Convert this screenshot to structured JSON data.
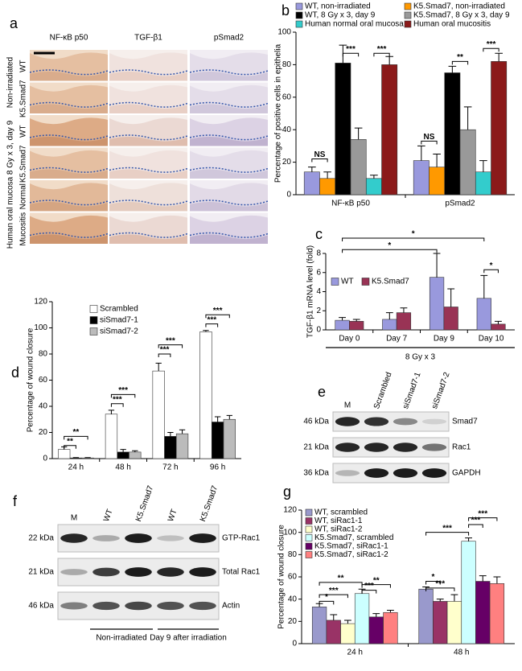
{
  "figure": {
    "panel_a": {
      "panel": "a",
      "columns": [
        "NF-κB p50",
        "TGF-β1",
        "pSmad2"
      ],
      "rows": [
        "WT",
        "K5.Smad7",
        "WT",
        "K5.Smad7",
        "Normal",
        "Mucositis"
      ],
      "groups": [
        "Non-irradiated",
        "8 Gy x 3, day 9",
        "Human oral mucosa"
      ]
    },
    "panel_e": {
      "panel": "e",
      "lanes": [
        "M",
        "Scrambled",
        "siSmad7-1",
        "siSmad7-2"
      ],
      "rows": [
        {
          "size": "46 kDa",
          "label": "Smad7"
        },
        {
          "size": "21 kDa",
          "label": "Rac1"
        },
        {
          "size": "36 kDa",
          "label": "GAPDH"
        }
      ]
    },
    "panel_f": {
      "panel": "f",
      "lanes": [
        "M",
        "WT",
        "K5.Smad7",
        "WT",
        "K5.Smad7"
      ],
      "rows": [
        {
          "size": "22 kDa",
          "label": "GTP-Rac1"
        },
        {
          "size": "21 kDa",
          "label": "Total Rac1"
        },
        {
          "size": "46 kDa",
          "label": "Actin"
        }
      ],
      "groups": [
        "Non-irradiated",
        "Day 9 after irradiation"
      ]
    }
  },
  "chart_data": [
    {
      "type": "bar",
      "panel": "b",
      "ylabel": "Percentage of positive cells in epithelia",
      "categories": [
        "NF-κB p50",
        "pSmad2"
      ],
      "series": [
        {
          "name": "WT, non-irradiated",
          "color": "#9999dd",
          "values": [
            14,
            21
          ],
          "errors": [
            3,
            9
          ]
        },
        {
          "name": "K5.Smad7, non-irradiated",
          "color": "#ff9900",
          "values": [
            10,
            17
          ],
          "errors": [
            4,
            8
          ]
        },
        {
          "name": "WT, 8 Gy x 3, day 9",
          "color": "#000000",
          "values": [
            81,
            75
          ],
          "errors": [
            11,
            4
          ]
        },
        {
          "name": "K5.Smad7, 8 Gy x 3, day 9",
          "color": "#999999",
          "values": [
            34,
            40
          ],
          "errors": [
            7,
            14
          ]
        },
        {
          "name": "Human normal oral mucosa",
          "color": "#33cccc",
          "values": [
            10,
            14
          ],
          "errors": [
            2,
            7
          ]
        },
        {
          "name": "Human oral mucositis",
          "color": "#8b1a1a",
          "values": [
            80,
            82
          ],
          "errors": [
            5,
            5
          ]
        }
      ],
      "ylim": [
        0,
        100
      ],
      "yticks": [
        0,
        20,
        40,
        60,
        80,
        100
      ],
      "annotations": [
        "NS",
        "***",
        "***",
        "NS",
        "**",
        "***"
      ]
    },
    {
      "type": "bar",
      "panel": "c",
      "ylabel": "TGF-β1 mRNA level (fold)",
      "xlabel": "8 Gy x 3",
      "categories": [
        "Day 0",
        "Day 7",
        "Day 9",
        "Day 10"
      ],
      "series": [
        {
          "name": "WT",
          "color": "#9999dd",
          "values": [
            1,
            1.1,
            5.5,
            3.3
          ],
          "errors": [
            0.3,
            0.7,
            2.5,
            2.4
          ]
        },
        {
          "name": "K5.Smad7",
          "color": "#993355",
          "values": [
            0.9,
            1.8,
            2.4,
            0.6
          ],
          "errors": [
            0.2,
            0.5,
            1.9,
            0.3
          ]
        }
      ],
      "ylim": [
        0,
        8
      ],
      "yticks": [
        0,
        2,
        4,
        6,
        8
      ],
      "annotations": [
        "*",
        "*",
        "*"
      ]
    },
    {
      "type": "bar",
      "panel": "d",
      "ylabel": "Percentage of wound closure",
      "categories": [
        "24 h",
        "48 h",
        "72 h",
        "96 h"
      ],
      "series": [
        {
          "name": "Scrambled",
          "color": "#ffffff",
          "values": [
            7,
            34,
            67,
            97
          ],
          "errors": [
            2,
            3,
            6,
            1
          ]
        },
        {
          "name": "siSmad7-1",
          "color": "#000000",
          "values": [
            0.5,
            5,
            17,
            28
          ],
          "errors": [
            0.3,
            2,
            3,
            4
          ]
        },
        {
          "name": "siSmad7-2",
          "color": "#bbbbbb",
          "values": [
            0.5,
            5,
            19,
            30
          ],
          "errors": [
            0.3,
            1,
            3,
            3
          ]
        }
      ],
      "ylim": [
        0,
        120
      ],
      "yticks": [
        0,
        20,
        40,
        60,
        80,
        100,
        120
      ],
      "annotations": [
        "**",
        "**",
        "***",
        "***",
        "***",
        "***",
        "***",
        "***"
      ]
    },
    {
      "type": "bar",
      "panel": "g",
      "ylabel": "Percentage of wound closure",
      "categories": [
        "24 h",
        "48 h"
      ],
      "series": [
        {
          "name": "WT, scrambled",
          "color": "#9999cc",
          "values": [
            33,
            49
          ],
          "errors": [
            3,
            2
          ]
        },
        {
          "name": "WT, siRac1-1",
          "color": "#993366",
          "values": [
            21,
            38
          ],
          "errors": [
            5,
            2
          ]
        },
        {
          "name": "WT, siRac1-2",
          "color": "#ffffcc",
          "values": [
            18,
            38
          ],
          "errors": [
            3,
            6
          ]
        },
        {
          "name": "K5.Smad7, scrambled",
          "color": "#ccffff",
          "values": [
            45,
            92
          ],
          "errors": [
            4,
            3
          ]
        },
        {
          "name": "K5.Smad7, siRac1-1",
          "color": "#660066",
          "values": [
            24,
            56
          ],
          "errors": [
            3,
            5
          ]
        },
        {
          "name": "K5.Smad7, siRac1-2",
          "color": "#ff8080",
          "values": [
            28,
            54
          ],
          "errors": [
            2,
            6
          ]
        }
      ],
      "ylim": [
        0,
        120
      ],
      "yticks": [
        0,
        20,
        40,
        60,
        80,
        100,
        120
      ],
      "annotations": [
        "**",
        "**",
        "***",
        "*",
        "***",
        "***",
        "*",
        "***",
        "***",
        "***"
      ]
    }
  ]
}
